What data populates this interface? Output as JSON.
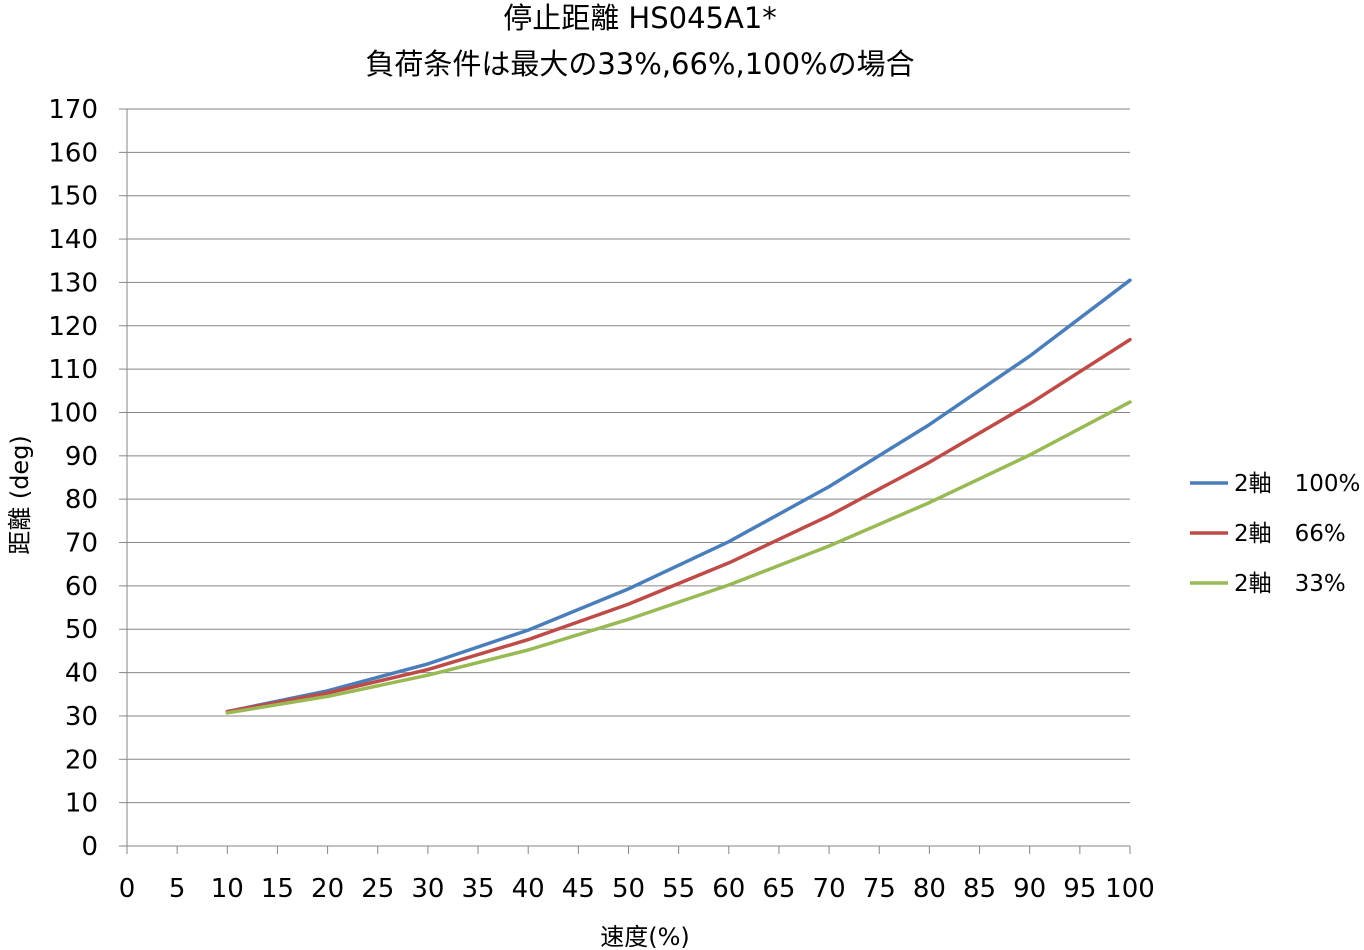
{
  "chart_data": {
    "type": "line",
    "title": "停止距離 HS045A1*",
    "subtitle": "負荷条件は最大の33%,66%,100%の場合",
    "xlabel": "速度(%)",
    "ylabel": "距離 (deg)",
    "xlim": [
      0,
      100
    ],
    "ylim": [
      0,
      170
    ],
    "x_ticks": [
      "0",
      "5",
      "10",
      "15",
      "20",
      "25",
      "30",
      "35",
      "40",
      "45",
      "50",
      "55",
      "60",
      "65",
      "70",
      "75",
      "80",
      "85",
      "90",
      "95",
      "100"
    ],
    "y_ticks": [
      "0",
      "10",
      "20",
      "30",
      "40",
      "50",
      "60",
      "70",
      "80",
      "90",
      "100",
      "110",
      "120",
      "130",
      "140",
      "150",
      "160",
      "170"
    ],
    "grid": true,
    "legend_position": "right",
    "x": [
      10,
      20,
      30,
      40,
      50,
      60,
      70,
      80,
      90,
      100
    ],
    "series": [
      {
        "name": "2軸　100%",
        "color": "#4a7ebb",
        "values": [
          31.0,
          35.8,
          42.0,
          49.8,
          59.3,
          70.2,
          82.9,
          97.2,
          113.0,
          130.5
        ]
      },
      {
        "name": "2軸　66%",
        "color": "#be4b48",
        "values": [
          31.0,
          35.3,
          40.7,
          47.6,
          55.8,
          65.3,
          76.2,
          88.5,
          102.0,
          116.8
        ]
      },
      {
        "name": "2軸　33%",
        "color": "#98b954",
        "values": [
          30.7,
          34.5,
          39.4,
          45.2,
          52.3,
          60.2,
          69.2,
          79.2,
          90.2,
          102.4
        ]
      }
    ]
  }
}
